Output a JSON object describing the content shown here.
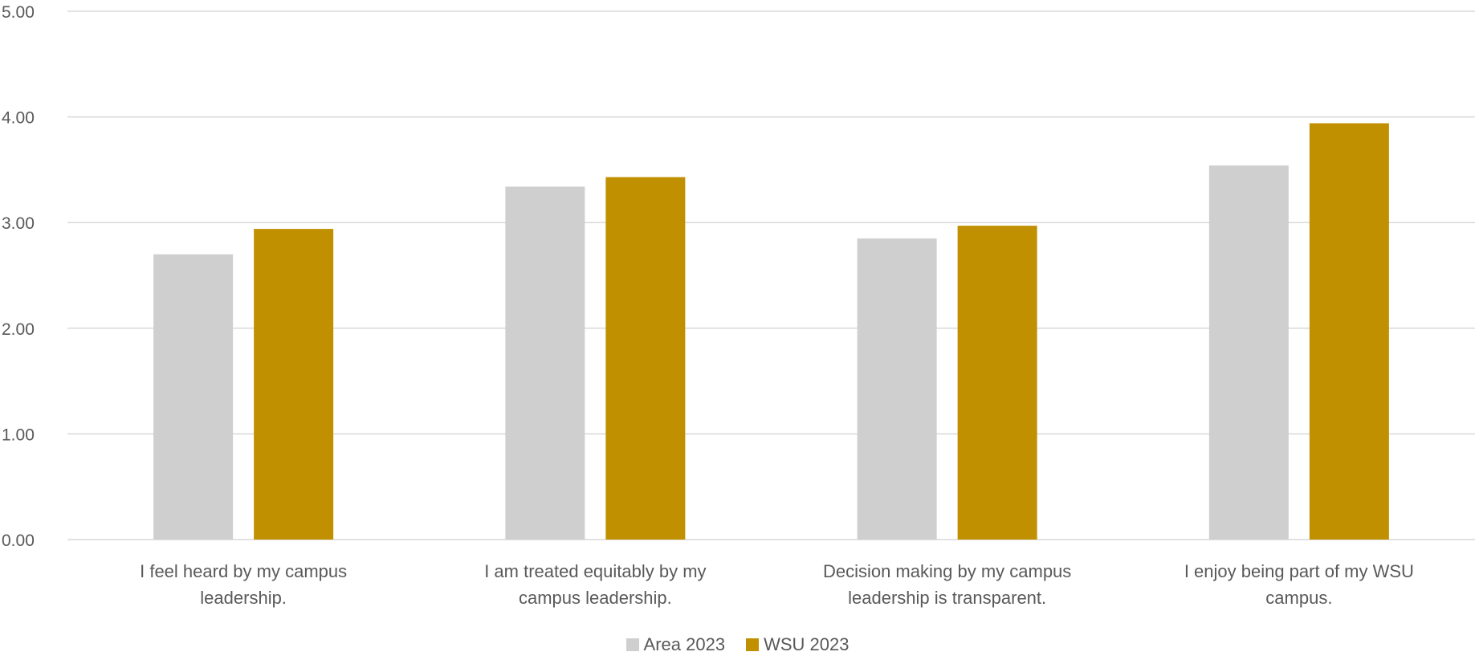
{
  "chart_data": {
    "type": "bar",
    "categories": [
      [
        "I feel heard by my campus",
        "leadership."
      ],
      [
        "I am treated equitably by my",
        "campus leadership."
      ],
      [
        "Decision making by my campus",
        "leadership is transparent."
      ],
      [
        "I enjoy being part of my WSU",
        "campus."
      ]
    ],
    "series": [
      {
        "name": "Area 2023",
        "color": "#d0cfd0",
        "values": [
          2.7,
          3.34,
          2.85,
          3.54
        ]
      },
      {
        "name": "WSU 2023",
        "color": "#c09000",
        "values": [
          2.94,
          3.43,
          2.97,
          3.94
        ]
      }
    ],
    "y_ticks": [
      "0.00",
      "1.00",
      "2.00",
      "3.00",
      "4.00",
      "5.00"
    ],
    "ylim": [
      0,
      5
    ],
    "grid": true,
    "gridline_color": "#d9d9d9",
    "legend_position": "bottom"
  }
}
